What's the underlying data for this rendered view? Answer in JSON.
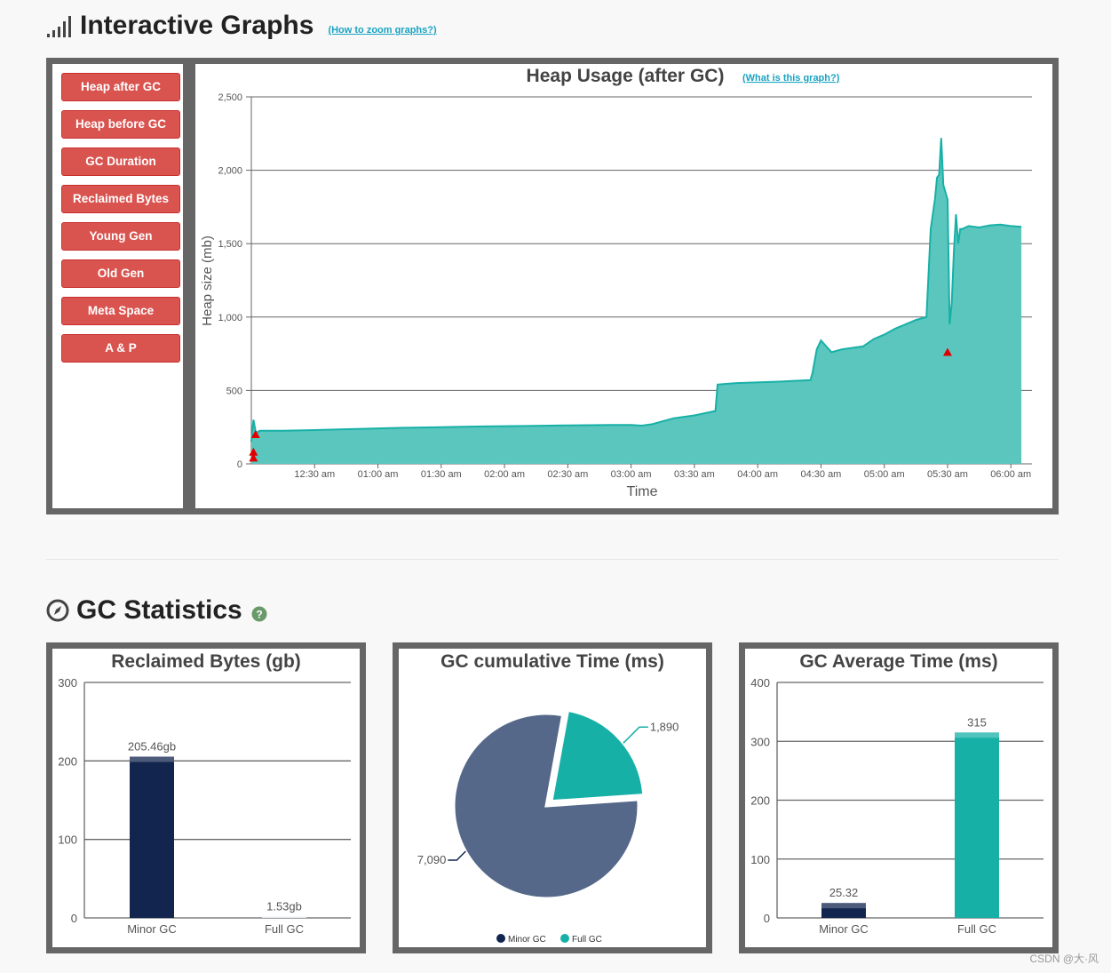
{
  "interactive_graphs": {
    "title": "Interactive Graphs",
    "help_link": "(How to zoom graphs?)",
    "buttons": [
      "Heap after GC",
      "Heap before GC",
      "GC Duration",
      "Reclaimed Bytes",
      "Young Gen",
      "Old Gen",
      "Meta Space",
      "A & P"
    ]
  },
  "gc_statistics": {
    "title": "GC Statistics",
    "help_icon": "question-icon"
  },
  "colors": {
    "button_red": "#d9534f",
    "teal": "#17b0a7",
    "teal_fill": "#5bc6bd",
    "navy": "#12254f",
    "slate": "#56688a",
    "frame": "#666666"
  },
  "watermark": "CSDN @大·风",
  "chart_data": [
    {
      "type": "area",
      "title": "Heap Usage (after GC)",
      "help_link": "(What is this graph?)",
      "xlabel": "Time",
      "ylabel": "Heap size (mb)",
      "ylim": [
        0,
        2500
      ],
      "yticks": [
        0,
        500,
        1000,
        1500,
        2000,
        2500
      ],
      "ytick_labels": [
        "0",
        "500",
        "1,000",
        "1,500",
        "2,000",
        "2,500"
      ],
      "xlim_minutes": [
        0,
        370
      ],
      "xtick_labels": [
        "12:30 am",
        "01:00 am",
        "01:30 am",
        "02:00 am",
        "02:30 am",
        "03:00 am",
        "03:30 am",
        "04:00 am",
        "04:30 am",
        "05:00 am",
        "05:30 am",
        "06:00 am"
      ],
      "xtick_minutes": [
        30,
        60,
        90,
        120,
        150,
        180,
        210,
        240,
        270,
        300,
        330,
        360
      ],
      "series": [
        {
          "name": "Heap after GC",
          "x": [
            0,
            1,
            2,
            3,
            4,
            15,
            30,
            50,
            70,
            90,
            110,
            130,
            150,
            170,
            180,
            185,
            190,
            200,
            210,
            220,
            221,
            225,
            230,
            250,
            265,
            266,
            268,
            270,
            275,
            280,
            290,
            295,
            300,
            305,
            310,
            315,
            320,
            322,
            324,
            325,
            326,
            327,
            328,
            330,
            331,
            332,
            333,
            334,
            335,
            336,
            337,
            340,
            345,
            350,
            355,
            360,
            365
          ],
          "values": [
            150,
            300,
            220,
            215,
            225,
            225,
            230,
            238,
            245,
            250,
            255,
            258,
            262,
            265,
            265,
            260,
            270,
            310,
            330,
            360,
            540,
            545,
            550,
            560,
            570,
            620,
            780,
            840,
            760,
            780,
            800,
            850,
            880,
            920,
            950,
            980,
            1000,
            1600,
            1800,
            1950,
            1970,
            2220,
            1900,
            1800,
            950,
            1100,
            1450,
            1700,
            1500,
            1600,
            1600,
            1620,
            1610,
            1625,
            1630,
            1620,
            1615
          ]
        }
      ],
      "full_gc_markers": [
        {
          "x": 1,
          "y": 40
        },
        {
          "x": 1,
          "y": 80
        },
        {
          "x": 2,
          "y": 200
        },
        {
          "x": 330,
          "y": 760
        }
      ]
    },
    {
      "type": "bar",
      "title": "Reclaimed Bytes (gb)",
      "categories": [
        "Minor GC",
        "Full GC"
      ],
      "values": [
        205.46,
        1.53
      ],
      "data_labels": [
        "205.46gb",
        "1.53gb"
      ],
      "ylim": [
        0,
        300
      ],
      "yticks": [
        0,
        100,
        200,
        300
      ]
    },
    {
      "type": "pie",
      "title": "GC cumulative Time (ms)",
      "categories": [
        "Minor GC",
        "Full GC"
      ],
      "values": [
        7090,
        1890
      ],
      "data_labels": [
        "7,090",
        "1,890"
      ],
      "legend": [
        "Minor GC",
        "Full GC"
      ],
      "legend_position": "bottom"
    },
    {
      "type": "bar",
      "title": "GC Average Time (ms)",
      "categories": [
        "Minor GC",
        "Full GC"
      ],
      "values": [
        25.32,
        315
      ],
      "data_labels": [
        "25.32",
        "315"
      ],
      "ylim": [
        0,
        400
      ],
      "yticks": [
        0,
        100,
        200,
        300,
        400
      ]
    }
  ]
}
